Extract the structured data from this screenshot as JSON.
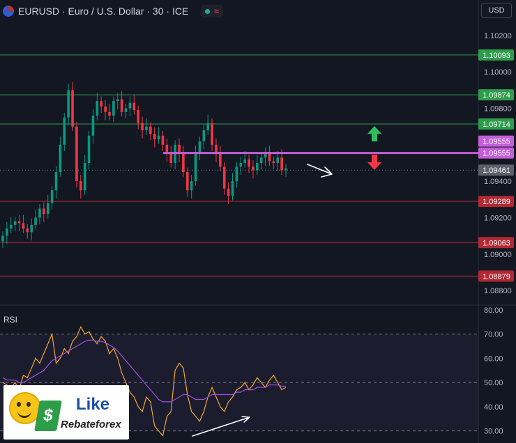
{
  "header": {
    "symbol_title": "EURUSD · Euro / U.S. Dollar · 30 · ICE",
    "status_glyph": "≈"
  },
  "currency_button": "USD",
  "logo": {
    "word1": "Like",
    "word2": "Rebateforex"
  },
  "chart_data": [
    {
      "type": "line",
      "subtype": "candlestick",
      "title": "",
      "ylim": [
        1.0872,
        1.1028
      ],
      "y_ticks": [
        "1.10200",
        "1.10000",
        "1.09800",
        "1.09400",
        "1.09200",
        "1.09000",
        "1.08800"
      ],
      "levels": [
        {
          "label": "1.10093",
          "value": 1.10093,
          "color": "#2e9d4a"
        },
        {
          "label": "1.09874",
          "value": 1.09874,
          "color": "#2e9d4a"
        },
        {
          "label": "1.09714",
          "value": 1.09714,
          "color": "#2e9d4a"
        },
        {
          "label": "1.09289",
          "value": 1.09289,
          "color": "#b22833"
        },
        {
          "label": "1.09063",
          "value": 1.09063,
          "color": "#b22833"
        },
        {
          "label": "1.08879",
          "value": 1.08879,
          "color": "#b22833"
        }
      ],
      "pivot": {
        "labels": [
          "1.09555",
          "1.09555"
        ],
        "value": 1.09555,
        "color": "#c45ed8"
      },
      "last_price": {
        "label": "1.09461",
        "value": 1.09461,
        "color": "#5d606b"
      },
      "close_path": [
        1.091,
        1.0914,
        1.0916,
        1.0918,
        1.0917,
        1.0914,
        1.0912,
        1.0916,
        1.092,
        1.0925,
        1.0922,
        1.0928,
        1.0935,
        1.0945,
        1.096,
        1.0975,
        1.099,
        1.097,
        1.094,
        1.0935,
        1.095,
        1.0965,
        1.0976,
        1.0984,
        1.0981,
        1.0978,
        1.0976,
        1.0984,
        1.0985,
        1.0978,
        1.098,
        1.0983,
        1.0979,
        1.0972,
        1.0968,
        1.097,
        1.0966,
        1.0963,
        1.0965,
        1.096,
        1.0955,
        1.095,
        1.096,
        1.0955,
        1.0945,
        1.0935,
        1.094,
        1.0955,
        1.0962,
        1.0968,
        1.0972,
        1.096,
        1.0955,
        1.0948,
        1.0936,
        1.0932,
        1.094,
        1.0948,
        1.095,
        1.0952,
        1.0948,
        1.0946,
        1.095,
        1.0953,
        1.0955,
        1.0951,
        1.095,
        1.0953,
        1.0946,
        1.0947
      ],
      "arrows": {
        "up_color": "#2ebd5f",
        "down_color": "#f23645"
      }
    },
    {
      "type": "line",
      "title": "RSI",
      "ylim": [
        25,
        82
      ],
      "y_ticks": [
        "80.00",
        "70.00",
        "60.00",
        "50.00",
        "40.00",
        "30.00"
      ],
      "band": [
        30,
        70
      ],
      "midline": 50,
      "series": [
        {
          "color": "#f0a72b",
          "values": [
            50,
            49,
            48,
            50,
            47,
            53,
            52,
            56,
            60,
            58,
            62,
            66,
            70,
            58,
            60,
            64,
            62,
            67,
            69,
            73,
            70,
            71,
            68,
            66,
            69,
            67,
            62,
            64,
            60,
            54,
            50,
            46,
            44,
            40,
            38,
            44,
            42,
            32,
            30,
            28,
            36,
            38,
            55,
            58,
            56,
            45,
            38,
            36,
            34,
            38,
            44,
            48,
            44,
            40,
            38,
            42,
            44,
            47,
            48,
            50,
            47,
            49,
            52,
            50,
            48,
            51,
            53,
            50,
            47,
            48
          ]
        },
        {
          "color": "#9c4fdc",
          "values": [
            52,
            51,
            51,
            51,
            50,
            50,
            51,
            52,
            53,
            54,
            55,
            57,
            59,
            60,
            61,
            62,
            63,
            64,
            65,
            66,
            67,
            67.5,
            67.5,
            67,
            67,
            66.5,
            65.5,
            64.5,
            63,
            61,
            59,
            57,
            55,
            53,
            51,
            49,
            47,
            45,
            43,
            42,
            42,
            42,
            43,
            44,
            45,
            45,
            44,
            43,
            43,
            43,
            44,
            45,
            45,
            45,
            45,
            45,
            45,
            46,
            46,
            47,
            47,
            47,
            48,
            48,
            48,
            49,
            49,
            49,
            48.5,
            48.5
          ]
        }
      ]
    }
  ]
}
